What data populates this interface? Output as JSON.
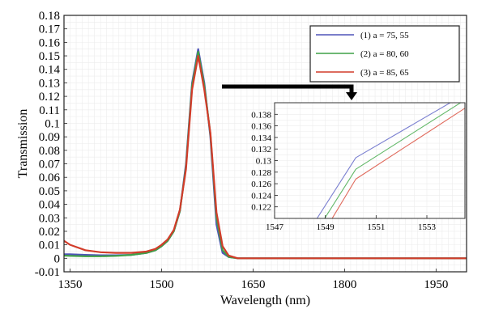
{
  "chart_data": [
    {
      "type": "line",
      "title": "",
      "xlabel": "Wavelength (nm)",
      "ylabel": "Transmission",
      "xlim": [
        1340,
        2000
      ],
      "ylim": [
        -0.01,
        0.18
      ],
      "x_ticks": [
        1350,
        1500,
        1650,
        1800,
        1950
      ],
      "y_ticks": [
        -0.01,
        0,
        0.01,
        0.02,
        0.03,
        0.04,
        0.05,
        0.06,
        0.07,
        0.08,
        0.09,
        0.1,
        0.11,
        0.12,
        0.13,
        0.14,
        0.15,
        0.16,
        0.17,
        0.18
      ],
      "grid": true,
      "legend_position": "top-right",
      "series": [
        {
          "name": "(1) a = 75, 55",
          "color": "#4f54b8",
          "x": [
            1340,
            1350,
            1375,
            1400,
            1425,
            1450,
            1475,
            1490,
            1500,
            1510,
            1520,
            1530,
            1540,
            1550,
            1560,
            1570,
            1580,
            1590,
            1600,
            1610,
            1625,
            1650,
            1700,
            1800,
            1900,
            2000
          ],
          "y": [
            0.003,
            0.003,
            0.0025,
            0.0022,
            0.0022,
            0.0025,
            0.004,
            0.006,
            0.009,
            0.013,
            0.02,
            0.035,
            0.07,
            0.13,
            0.155,
            0.13,
            0.09,
            0.025,
            0.004,
            0.001,
            0.0,
            0.0,
            0.0,
            0.0,
            0.0,
            0.0
          ]
        },
        {
          "name": "(2) a = 80, 60",
          "color": "#3fa046",
          "x": [
            1340,
            1350,
            1375,
            1400,
            1425,
            1450,
            1475,
            1490,
            1500,
            1510,
            1520,
            1530,
            1540,
            1550,
            1560,
            1570,
            1580,
            1590,
            1600,
            1610,
            1625,
            1650,
            1700,
            1800,
            1900,
            2000
          ],
          "y": [
            0.002,
            0.0018,
            0.0015,
            0.0015,
            0.0018,
            0.0025,
            0.004,
            0.006,
            0.009,
            0.013,
            0.02,
            0.035,
            0.068,
            0.128,
            0.153,
            0.128,
            0.092,
            0.03,
            0.006,
            0.001,
            0.0,
            0.0,
            0.0,
            0.0,
            0.0,
            0.0
          ]
        },
        {
          "name": "(3) a = 85, 65",
          "color": "#d23c2a",
          "x": [
            1340,
            1350,
            1375,
            1400,
            1425,
            1450,
            1475,
            1490,
            1500,
            1510,
            1520,
            1530,
            1540,
            1550,
            1560,
            1570,
            1580,
            1590,
            1600,
            1610,
            1625,
            1650,
            1700,
            1800,
            1900,
            2000
          ],
          "y": [
            0.013,
            0.01,
            0.006,
            0.0045,
            0.004,
            0.004,
            0.005,
            0.007,
            0.01,
            0.014,
            0.021,
            0.036,
            0.066,
            0.125,
            0.15,
            0.125,
            0.093,
            0.034,
            0.009,
            0.002,
            0.0,
            0.0,
            0.0,
            0.0,
            0.0,
            0.0
          ]
        }
      ]
    },
    {
      "type": "line",
      "title": "",
      "xlabel": "",
      "ylabel": "",
      "xlim": [
        1547,
        1554.5
      ],
      "ylim": [
        0.12,
        0.14
      ],
      "x_ticks": [
        1547,
        1549,
        1551,
        1553
      ],
      "y_ticks": [
        0.122,
        0.124,
        0.126,
        0.128,
        0.13,
        0.132,
        0.134,
        0.136,
        0.138
      ],
      "grid": true,
      "series": [
        {
          "name": "(1) a = 75, 55",
          "color": "#7a7fd0",
          "x": [
            1548.6,
            1550.2,
            1554.0
          ],
          "y": [
            0.1195,
            0.1305,
            0.1402
          ]
        },
        {
          "name": "(2) a = 80, 60",
          "color": "#62b868",
          "x": [
            1548.9,
            1550.2,
            1554.4
          ],
          "y": [
            0.1195,
            0.1285,
            0.1402
          ]
        },
        {
          "name": "(3) a = 85, 65",
          "color": "#e06a5c",
          "x": [
            1549.2,
            1550.2,
            1554.9
          ],
          "y": [
            0.1195,
            0.1268,
            0.1402
          ]
        }
      ]
    }
  ]
}
